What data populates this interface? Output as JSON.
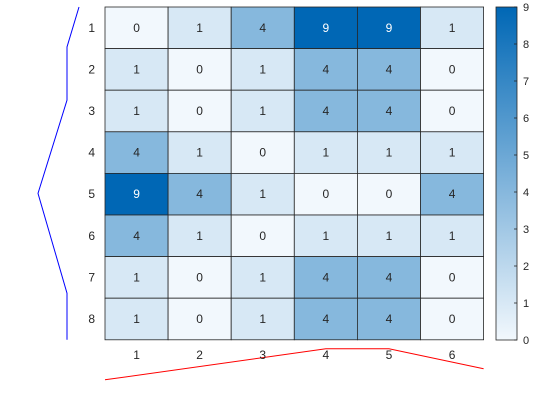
{
  "chart_data": {
    "type": "heatmap",
    "title": "",
    "xlabel": "",
    "ylabel": "",
    "x_labels": [
      "1",
      "2",
      "3",
      "4",
      "5",
      "6"
    ],
    "y_labels": [
      "1",
      "2",
      "3",
      "4",
      "5",
      "6",
      "7",
      "8"
    ],
    "values": [
      [
        0,
        1,
        4,
        9,
        9,
        1
      ],
      [
        1,
        0,
        1,
        4,
        4,
        0
      ],
      [
        1,
        0,
        1,
        4,
        4,
        0
      ],
      [
        4,
        1,
        0,
        1,
        1,
        1
      ],
      [
        9,
        4,
        1,
        0,
        0,
        4
      ],
      [
        4,
        1,
        0,
        1,
        1,
        1
      ],
      [
        1,
        0,
        1,
        4,
        4,
        0
      ],
      [
        1,
        0,
        1,
        4,
        4,
        0
      ]
    ],
    "colorbar": {
      "range": [
        0,
        9
      ],
      "ticks": [
        "0",
        "1",
        "2",
        "3",
        "4",
        "5",
        "6",
        "7",
        "8",
        "9"
      ],
      "colormap": [
        "#f2f8fd",
        "#0067b5"
      ]
    },
    "row_dendrogram": {
      "color": "#0000ff",
      "orientation": "left"
    },
    "column_dendrogram": {
      "color": "#ff0000",
      "orientation": "bottom"
    },
    "grid": true,
    "legend_position": "right"
  }
}
